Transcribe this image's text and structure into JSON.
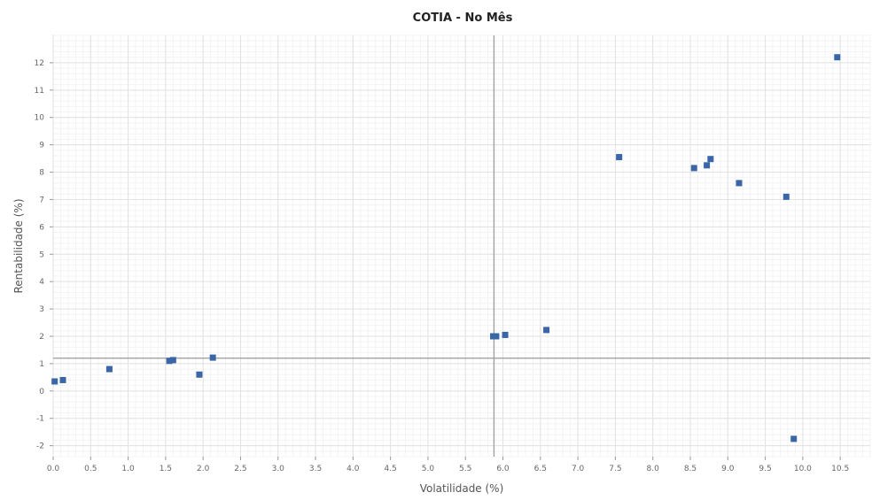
{
  "chart_data": {
    "type": "scatter",
    "title": "COTIA - No Mês",
    "xlabel": "Volatilidade (%)",
    "ylabel": "Rentabilidade (%)",
    "xlim": [
      0.0,
      10.9
    ],
    "ylim": [
      -2.4,
      13.0
    ],
    "x_ticks": [
      "0.0",
      "0.5",
      "1.0",
      "1.5",
      "2.0",
      "2.5",
      "3.0",
      "3.5",
      "4.0",
      "4.5",
      "5.0",
      "5.5",
      "6.0",
      "6.5",
      "7.0",
      "7.5",
      "8.0",
      "8.5",
      "9.0",
      "9.5",
      "10.0",
      "10.5"
    ],
    "y_ticks": [
      "-2",
      "-1",
      "0",
      "1",
      "2",
      "3",
      "4",
      "5",
      "6",
      "7",
      "8",
      "9",
      "10",
      "11",
      "12"
    ],
    "grid": true,
    "reference_lines": {
      "x": 5.88,
      "y": 1.2
    },
    "marker_color": "#3a66a8",
    "reference_line_color": "#999999",
    "series": [
      {
        "points": [
          {
            "x": 0.02,
            "y": 0.35
          },
          {
            "x": 0.13,
            "y": 0.4
          },
          {
            "x": 0.75,
            "y": 0.8
          },
          {
            "x": 1.55,
            "y": 1.1
          },
          {
            "x": 1.6,
            "y": 1.13
          },
          {
            "x": 1.95,
            "y": 0.6
          },
          {
            "x": 2.13,
            "y": 1.22
          },
          {
            "x": 5.87,
            "y": 2.0
          },
          {
            "x": 5.91,
            "y": 2.0
          },
          {
            "x": 6.03,
            "y": 2.05
          },
          {
            "x": 6.58,
            "y": 2.23
          },
          {
            "x": 7.55,
            "y": 8.55
          },
          {
            "x": 8.55,
            "y": 8.15
          },
          {
            "x": 8.72,
            "y": 8.25
          },
          {
            "x": 8.77,
            "y": 8.48
          },
          {
            "x": 9.15,
            "y": 7.6
          },
          {
            "x": 9.78,
            "y": 7.1
          },
          {
            "x": 9.88,
            "y": -1.75
          },
          {
            "x": 10.46,
            "y": 12.2
          }
        ]
      }
    ]
  }
}
